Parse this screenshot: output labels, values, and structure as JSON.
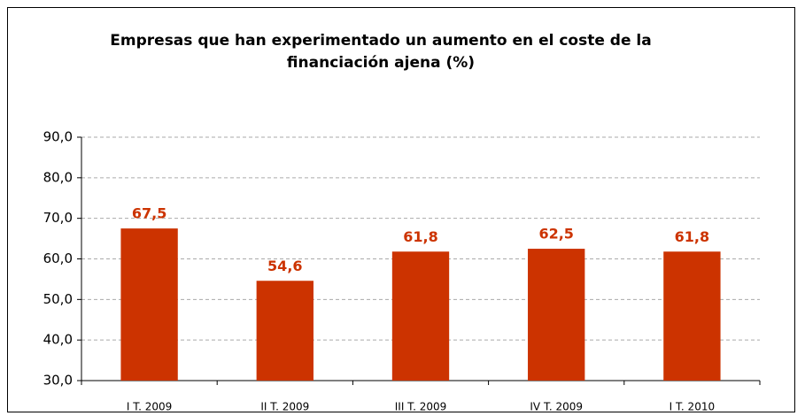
{
  "chart_data": {
    "type": "bar",
    "title": "Empresas que han experimentado un aumento en el coste de la financiación ajena (%)",
    "categories": [
      "I T. 2009",
      "II T. 2009",
      "III T. 2009",
      "IV T. 2009",
      "I T. 2010"
    ],
    "values": [
      67.5,
      54.6,
      61.8,
      62.5,
      61.8
    ],
    "value_labels": [
      "67,5",
      "54,6",
      "61,8",
      "62,5",
      "61,8"
    ],
    "color": "#cc3300",
    "ylim": [
      30,
      90
    ],
    "yticks": [
      {
        "value": 30,
        "label": "30,0"
      },
      {
        "value": 40,
        "label": "40,0"
      },
      {
        "value": 50,
        "label": "50,0"
      },
      {
        "value": 60,
        "label": "60,0"
      },
      {
        "value": 70,
        "label": "70,0"
      },
      {
        "value": 80,
        "label": "80,0"
      },
      {
        "value": 90,
        "label": "90,0"
      }
    ],
    "grid": true
  }
}
